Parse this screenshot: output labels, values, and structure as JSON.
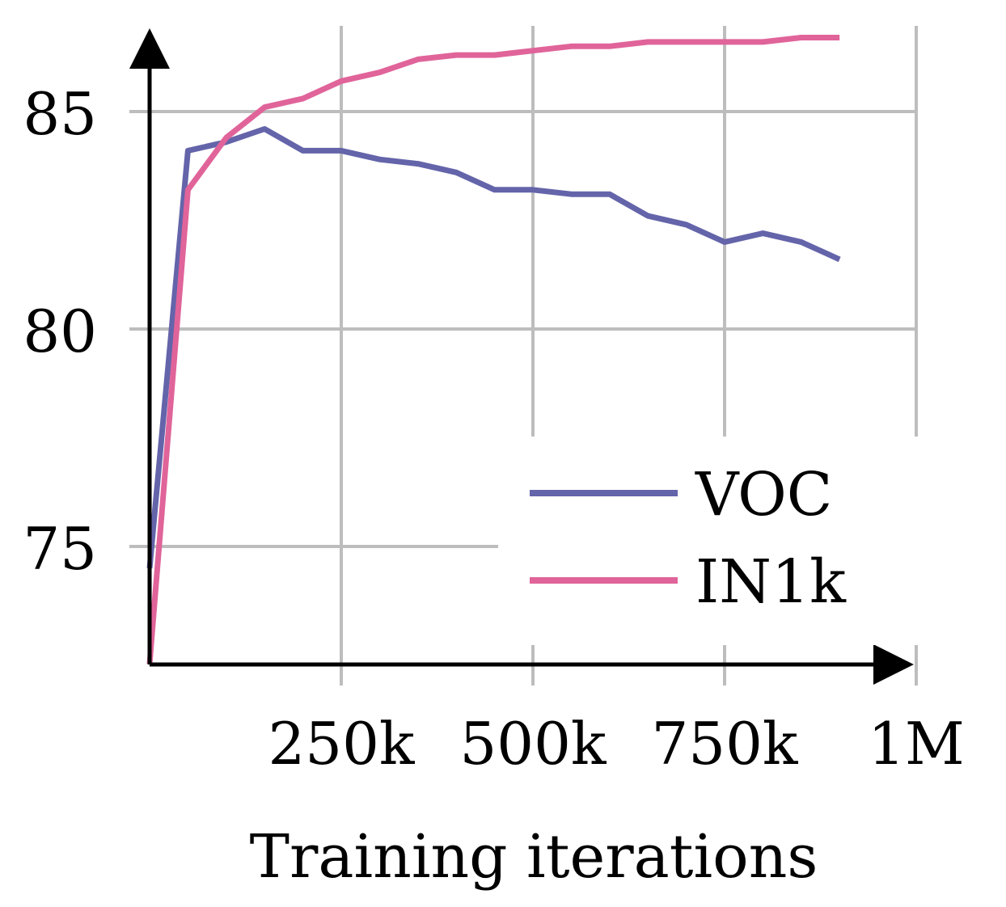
{
  "chart_data": {
    "type": "line",
    "xlabel": "Training iterations",
    "ylabel": "",
    "xlim": [
      0,
      1000000
    ],
    "ylim": [
      72.3,
      85.8
    ],
    "x_ticks": [
      250000,
      500000,
      750000,
      1000000
    ],
    "x_tick_labels": [
      "250k",
      "500k",
      "750k",
      "1M"
    ],
    "y_ticks": [
      75,
      80,
      85
    ],
    "y_tick_labels": [
      "75",
      "80",
      "85"
    ],
    "grid": true,
    "legend": "bottom-right",
    "series": [
      {
        "name": "VOC",
        "color": "#6464aa",
        "x": [
          0,
          50000,
          100000,
          150000,
          200000,
          250000,
          300000,
          350000,
          400000,
          450000,
          500000,
          550000,
          600000,
          650000,
          700000,
          750000,
          800000,
          850000,
          900000,
          950000
        ],
        "y": [
          74.5,
          84.1,
          84.3,
          84.6,
          84.1,
          84.1,
          83.9,
          83.8,
          83.6,
          83.2,
          83.2,
          83.1,
          83.1,
          82.6,
          82.4,
          82.0,
          82.2,
          82.0,
          81.6,
          null
        ]
      },
      {
        "name": "IN1k",
        "color": "#e0649a",
        "x": [
          0,
          50000,
          100000,
          150000,
          200000,
          250000,
          300000,
          350000,
          400000,
          450000,
          500000,
          550000,
          600000,
          650000,
          700000,
          750000,
          800000,
          850000,
          900000,
          950000
        ],
        "y": [
          72.3,
          83.2,
          84.4,
          85.1,
          85.3,
          85.7,
          85.9,
          86.2,
          86.3,
          86.3,
          86.4,
          86.5,
          86.5,
          86.6,
          86.6,
          86.6,
          86.6,
          86.7,
          86.7,
          null
        ]
      }
    ]
  }
}
